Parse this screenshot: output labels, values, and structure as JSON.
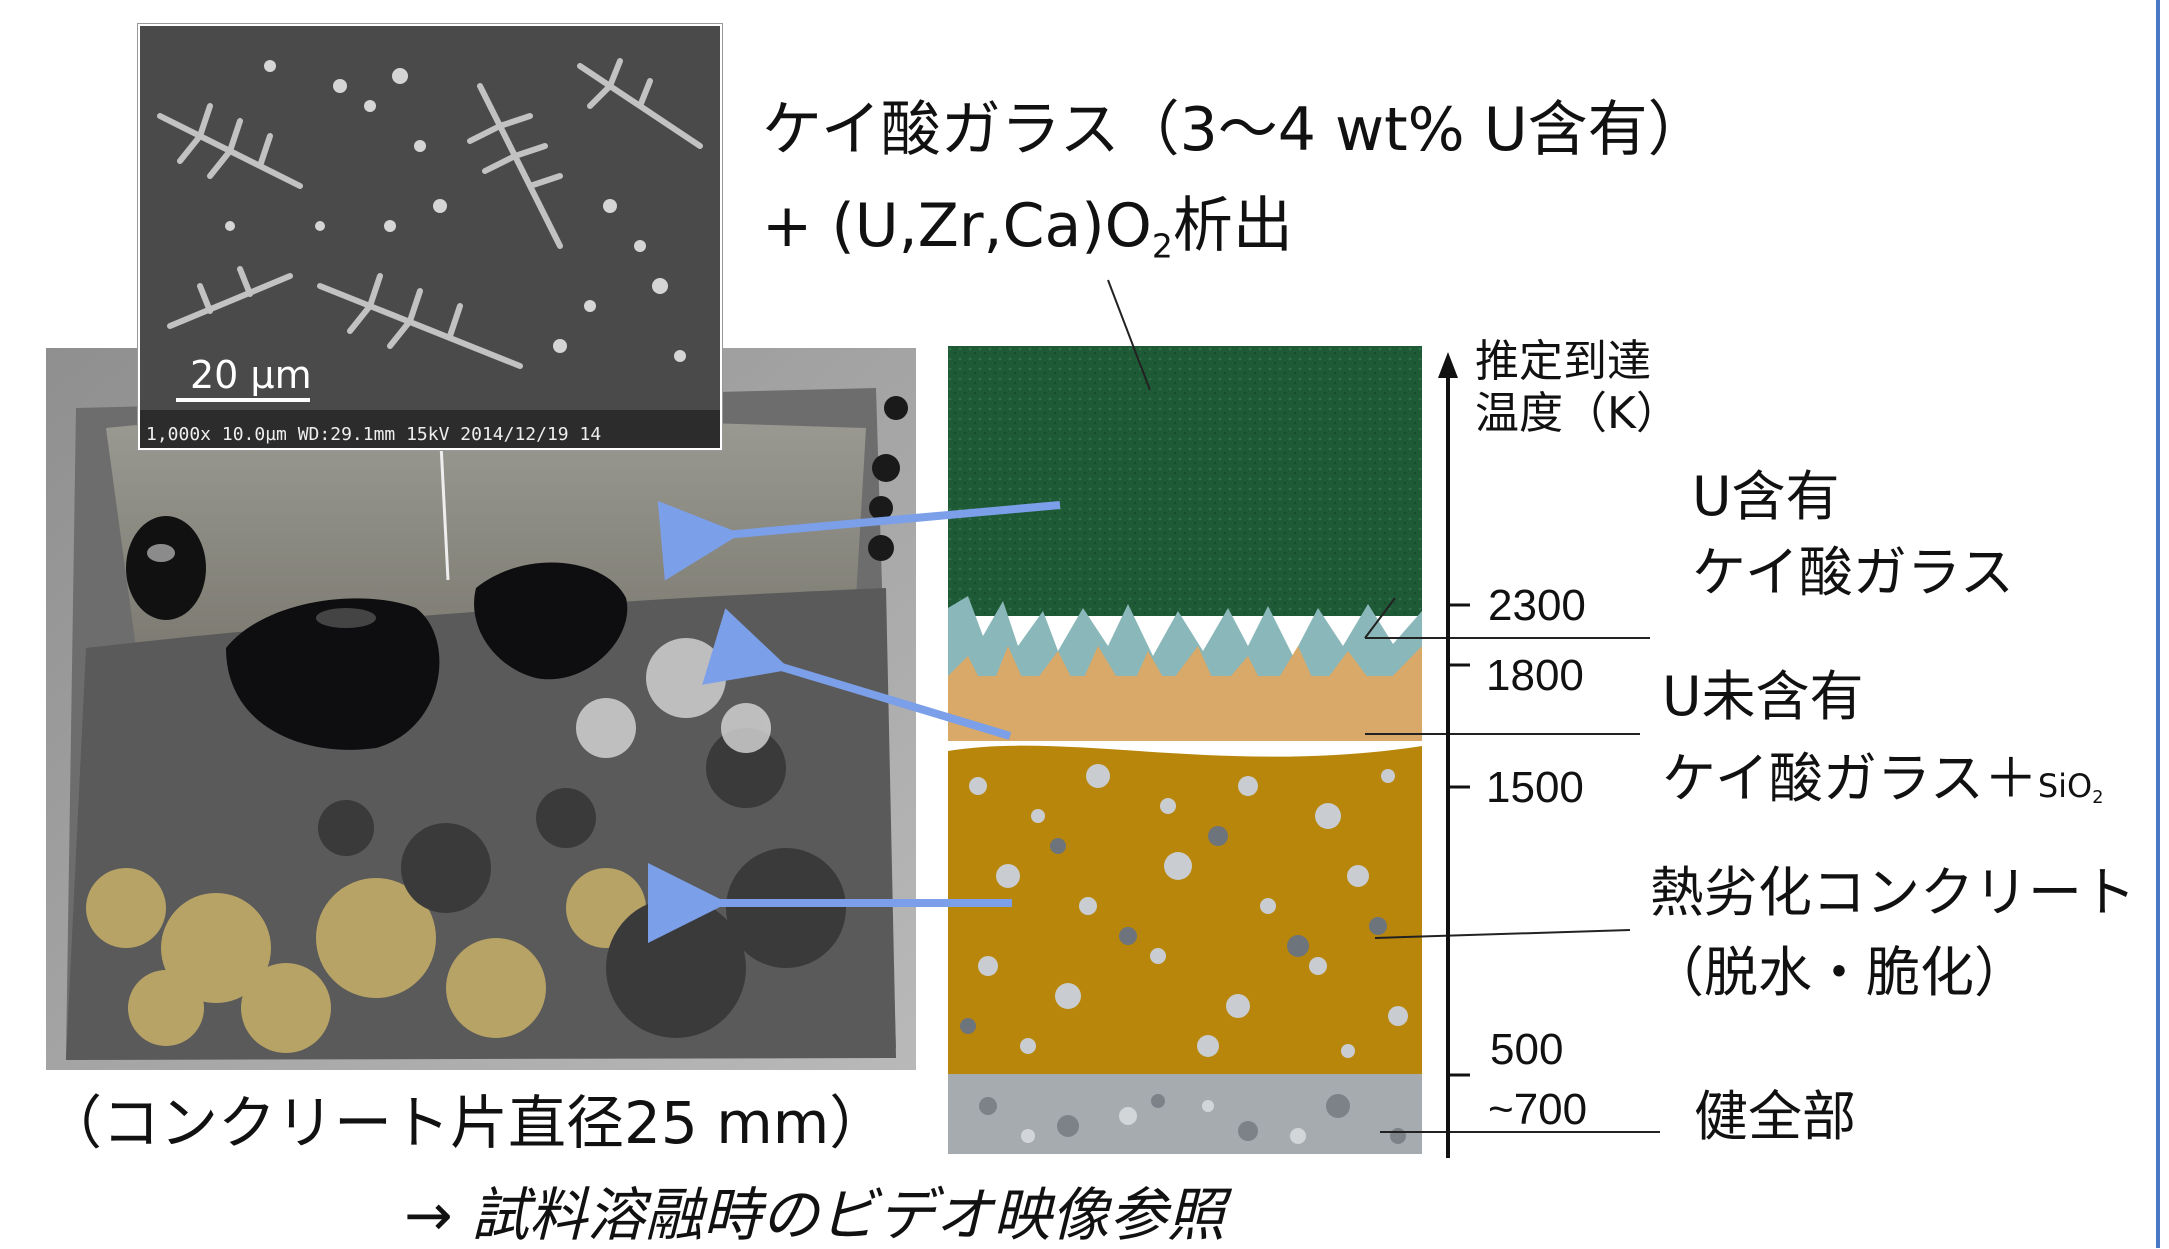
{
  "sem": {
    "scale_bar": "20 µm",
    "info_bar": "1,000x 10.0µm WD:29.1mm 15kV 2014/12/19 14"
  },
  "title": {
    "line1": "ケイ酸ガラス（3～4 wt% U含有）",
    "line2_prefix": "+ (U,Zr,Ca)O",
    "line2_sub": "2",
    "line2_suffix": "析出"
  },
  "axis": {
    "title_line1": "推定到達",
    "title_line2": "温度（K）",
    "ticks": [
      "2300",
      "1800",
      "1500",
      "500",
      "~700"
    ]
  },
  "layers": {
    "u_glass_line1": "U含有",
    "u_glass_line2": "ケイ酸ガラス",
    "no_u_glass_line1": "U未含有",
    "no_u_glass_line2": "ケイ酸ガラス＋",
    "no_u_glass_sio": "SiO",
    "no_u_glass_sub": "2",
    "degraded_line1": "熱劣化コンクリート",
    "degraded_line2": "（脱水・脆化）",
    "sound": "健全部"
  },
  "caption": "（コンクリート片直径25 mm）",
  "footer": "→ 試料溶融時のビデオ映像参照",
  "colors": {
    "arrow": "#7b9fe8",
    "glass": "#1f5a37",
    "glass_u_free": "#8ab7b9",
    "sand": "#d9a96a",
    "concrete": "#b8860b",
    "sound": "#a6abb0",
    "accent_rule": "#4a78c4"
  }
}
